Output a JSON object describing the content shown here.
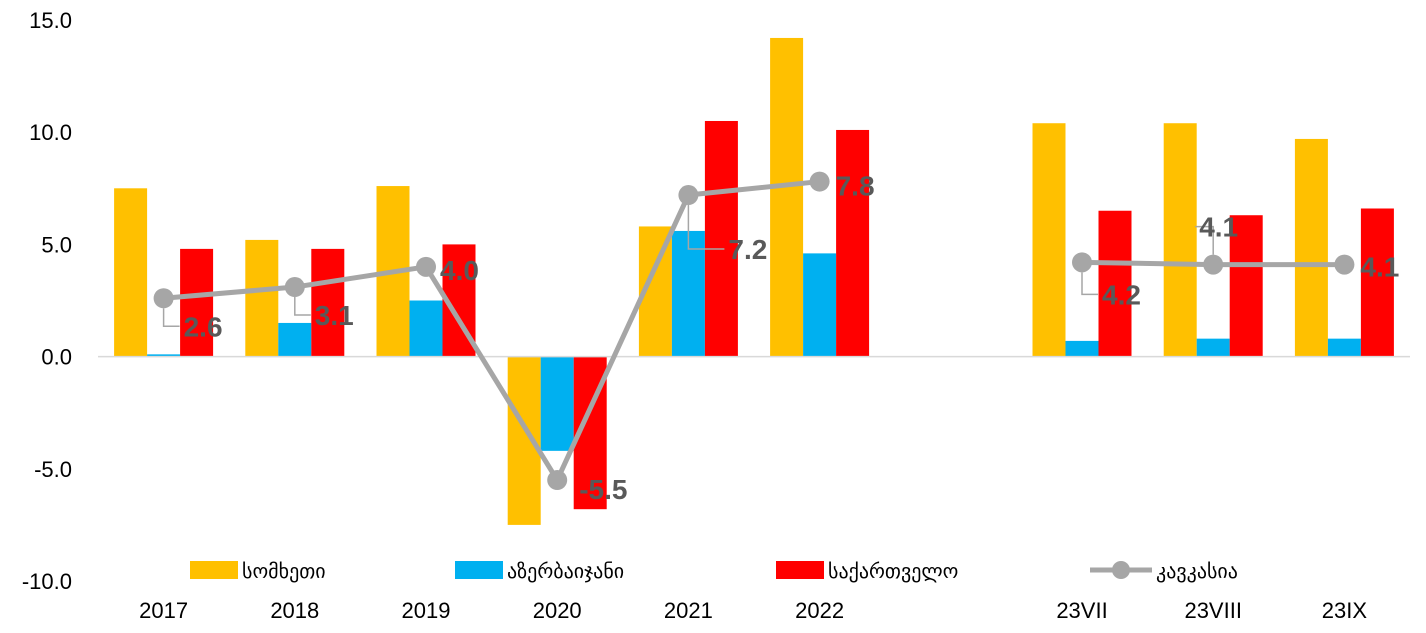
{
  "chart_data": {
    "type": "bar",
    "title": "",
    "categories": [
      "2017",
      "2018",
      "2019",
      "2020",
      "2021",
      "2022",
      "",
      "23VII",
      "23VIII",
      "23IX"
    ],
    "series": [
      {
        "name": "სომხეთი",
        "type": "bar",
        "color": "#FFC000",
        "values": [
          7.5,
          5.2,
          7.6,
          -7.5,
          5.8,
          14.2,
          null,
          10.4,
          10.4,
          9.7
        ]
      },
      {
        "name": "აზერბაიჯანი",
        "type": "bar",
        "color": "#00B0F0",
        "values": [
          0.1,
          1.5,
          2.5,
          -4.2,
          5.6,
          4.6,
          null,
          0.7,
          0.8,
          0.8
        ]
      },
      {
        "name": "საქართველო",
        "type": "bar",
        "color": "#FF0000",
        "values": [
          4.8,
          4.8,
          5.0,
          -6.8,
          10.5,
          10.1,
          null,
          6.5,
          6.3,
          6.6
        ]
      },
      {
        "name": "კავკასია",
        "type": "line",
        "color": "#A6A6A6",
        "values": [
          2.6,
          3.1,
          4.0,
          -5.5,
          7.2,
          7.8,
          null,
          4.2,
          4.1,
          4.1
        ],
        "labels": [
          "2.6",
          "3.1",
          "4.0",
          "-5.5",
          "7.2",
          "7.8",
          "",
          "4.2",
          "4.1",
          "4.1"
        ]
      }
    ],
    "ylim": [
      -10,
      15
    ],
    "yticks": [
      "-10.0",
      "-5.0",
      "0.0",
      "5.0",
      "10.0",
      "15.0"
    ],
    "grid": false,
    "legend_position": "bottom"
  }
}
